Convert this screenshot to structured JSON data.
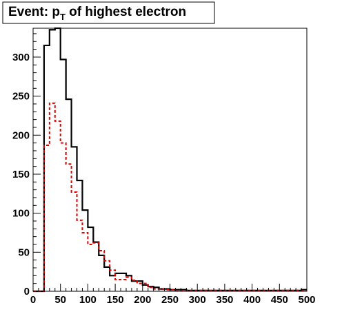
{
  "chart_data": {
    "type": "histogram",
    "title": "Event: p",
    "title_subscript": "T",
    "title_suffix": " of highest electron",
    "xlabel": "",
    "ylabel": "",
    "xlim": [
      0,
      500
    ],
    "ylim": [
      0,
      337
    ],
    "bin_width": 10,
    "grid": false,
    "x_ticks": [
      0,
      50,
      100,
      150,
      200,
      250,
      300,
      350,
      400,
      450,
      500
    ],
    "y_ticks": [
      0,
      50,
      100,
      150,
      200,
      250,
      300
    ],
    "series": [
      {
        "style": "solid",
        "color": "#000000",
        "bin_edges_start": 0,
        "values": [
          0,
          0,
          315,
          335,
          337,
          297,
          246,
          185,
          142,
          104,
          82,
          63,
          46,
          31,
          20,
          23,
          23,
          20,
          13,
          13,
          8,
          6,
          5,
          3,
          3,
          2,
          2,
          2,
          1,
          1,
          1,
          1,
          1,
          1,
          1,
          1,
          1,
          1,
          1,
          1,
          1,
          1,
          1,
          1,
          1,
          1,
          1,
          1,
          1,
          2
        ]
      },
      {
        "style": "dashed",
        "color": "#e00000",
        "bin_edges_start": 0,
        "values": [
          0,
          0,
          187,
          241,
          218,
          190,
          163,
          127,
          91,
          75,
          60,
          62,
          52,
          39,
          27,
          15,
          15,
          18,
          14,
          10,
          10,
          5,
          3,
          3,
          2,
          2,
          1,
          1,
          1,
          1,
          1,
          1,
          1,
          1,
          1,
          1,
          1,
          1,
          1,
          1,
          1,
          1,
          1,
          1,
          1,
          1,
          1,
          1,
          1,
          1
        ]
      }
    ]
  }
}
